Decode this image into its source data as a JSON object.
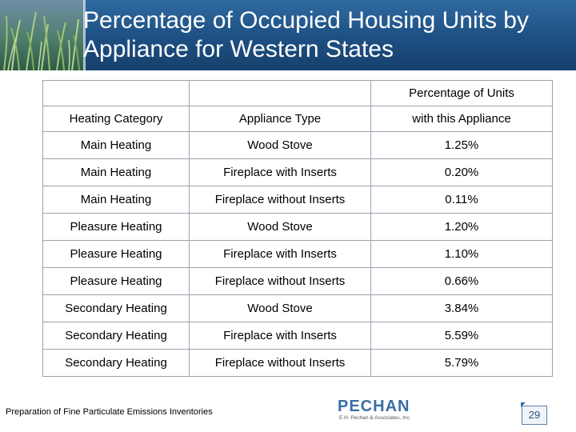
{
  "title": {
    "line1": "Percentage of Occupied Housing Units by",
    "line2": "Appliance for Western States"
  },
  "table": {
    "headers": {
      "category": "Heating Category",
      "appliance": "Appliance Type",
      "percent_line1": "Percentage of Units",
      "percent_line2": "with this Appliance"
    },
    "rows": [
      {
        "category": "Main Heating",
        "appliance": "Wood Stove",
        "percent": "1.25%"
      },
      {
        "category": "Main Heating",
        "appliance": "Fireplace with Inserts",
        "percent": "0.20%"
      },
      {
        "category": "Main Heating",
        "appliance": "Fireplace without Inserts",
        "percent": "0.11%"
      },
      {
        "category": "Pleasure Heating",
        "appliance": "Wood Stove",
        "percent": "1.20%"
      },
      {
        "category": "Pleasure Heating",
        "appliance": "Fireplace with Inserts",
        "percent": "1.10%"
      },
      {
        "category": "Pleasure Heating",
        "appliance": "Fireplace without Inserts",
        "percent": "0.66%"
      },
      {
        "category": "Secondary Heating",
        "appliance": "Wood Stove",
        "percent": "3.84%"
      },
      {
        "category": "Secondary Heating",
        "appliance": "Fireplace with Inserts",
        "percent": "5.59%"
      },
      {
        "category": "Secondary Heating",
        "appliance": "Fireplace without Inserts",
        "percent": "5.79%"
      }
    ]
  },
  "footer": {
    "text": "Preparation of Fine Particulate Emissions Inventories",
    "logo_name": "PECHAN",
    "logo_sub": "E.H. Pechan & Associates, Inc.",
    "page_number": "29"
  },
  "colors": {
    "header_blue": "#1d4f82",
    "logo_blue": "#3a6fa3"
  }
}
